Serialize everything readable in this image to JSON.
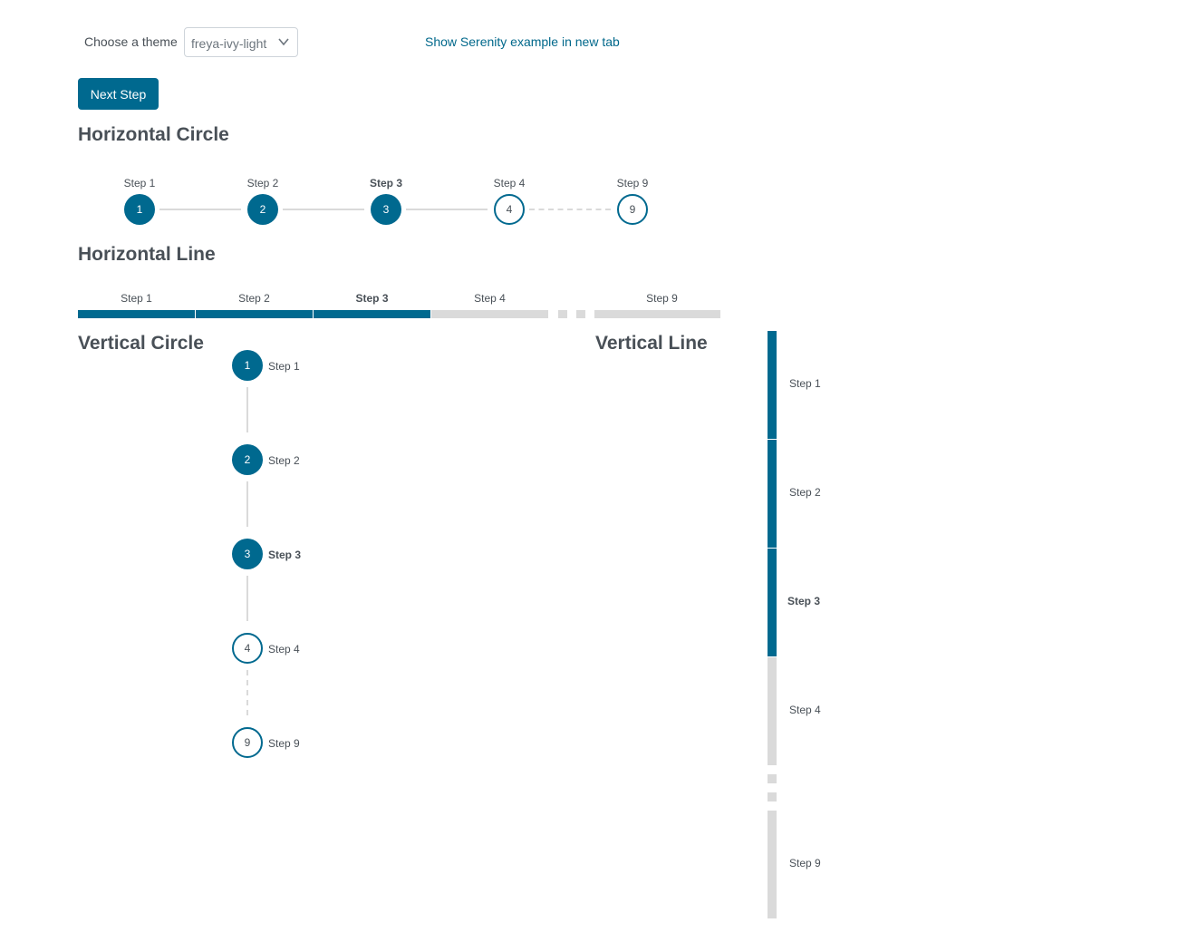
{
  "controls": {
    "theme_label": "Choose a theme",
    "theme_value": "freya-ivy-light",
    "serenity_link": "Show Serenity example in new tab",
    "next_step_label": "Next Step"
  },
  "sections": {
    "horizontal_circle": "Horizontal Circle",
    "horizontal_line": "Horizontal Line",
    "vertical_circle": "Vertical Circle",
    "vertical_line": "Vertical Line"
  },
  "colors": {
    "accent": "#00698f",
    "inactive": "#dadada",
    "text": "#495057"
  },
  "steps": [
    {
      "label": "Step 1",
      "number": "1",
      "state": "done"
    },
    {
      "label": "Step 2",
      "number": "2",
      "state": "done"
    },
    {
      "label": "Step 3",
      "number": "3",
      "state": "current"
    },
    {
      "label": "Step 4",
      "number": "4",
      "state": "todo"
    },
    {
      "label": "Step 9",
      "number": "9",
      "state": "todo"
    }
  ]
}
